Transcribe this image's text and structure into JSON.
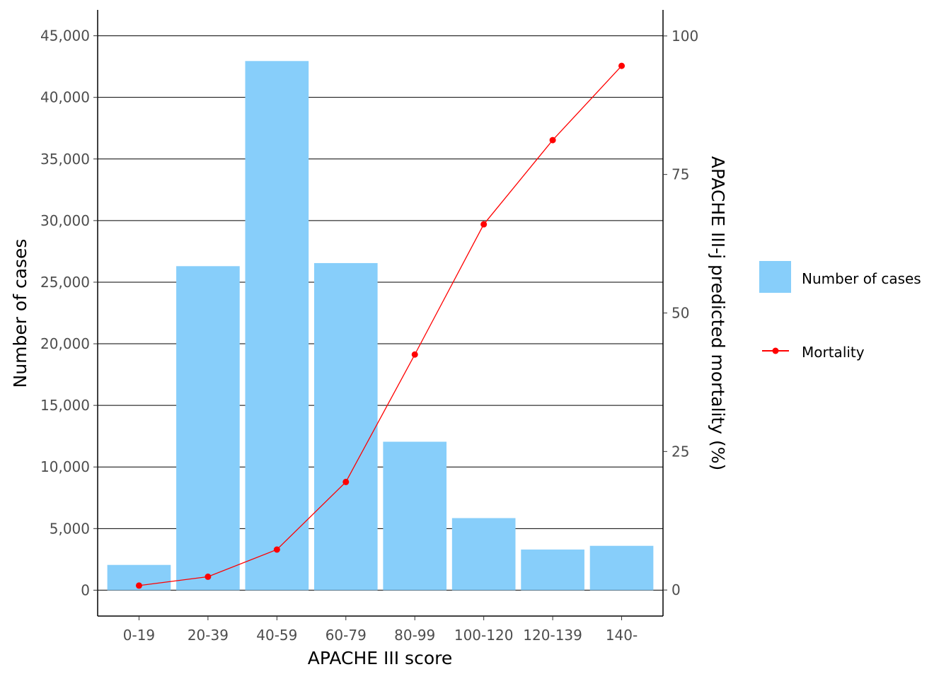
{
  "chart_data": {
    "type": "bar",
    "categories": [
      "0-19",
      "20-39",
      "40-59",
      "60-79",
      "80-99",
      "100-120",
      "120-139",
      "140-"
    ],
    "series": [
      {
        "name": "Number of cases",
        "type": "bar",
        "axis": "left",
        "values": [
          2050,
          26300,
          42950,
          26550,
          12050,
          5850,
          3300,
          3600
        ],
        "color": "#87CEFA"
      },
      {
        "name": "Mortality",
        "type": "line",
        "axis": "right",
        "values": [
          0.8,
          2.4,
          7.3,
          19.5,
          42.5,
          66.0,
          81.2,
          94.6
        ],
        "color": "#FF0000"
      }
    ],
    "xlabel": "APACHE III score",
    "ylabel": "Number of cases",
    "y2label": "APACHE III-j predicted mortality (%)",
    "ylim": [
      -2100,
      47100
    ],
    "y2lim": [
      -4.7,
      104.7
    ],
    "yticks": [
      0,
      5000,
      10000,
      15000,
      20000,
      25000,
      30000,
      35000,
      40000,
      45000
    ],
    "ytick_labels": [
      "0",
      "5,000",
      "10,000",
      "15,000",
      "20,000",
      "25,000",
      "30,000",
      "35,000",
      "40,000",
      "45,000"
    ],
    "y2ticks": [
      0,
      25,
      50,
      75,
      100
    ],
    "y2tick_labels": [
      "0",
      "25",
      "50",
      "75",
      "100"
    ],
    "grid": "horizontal major lines",
    "legend_position": "right"
  }
}
